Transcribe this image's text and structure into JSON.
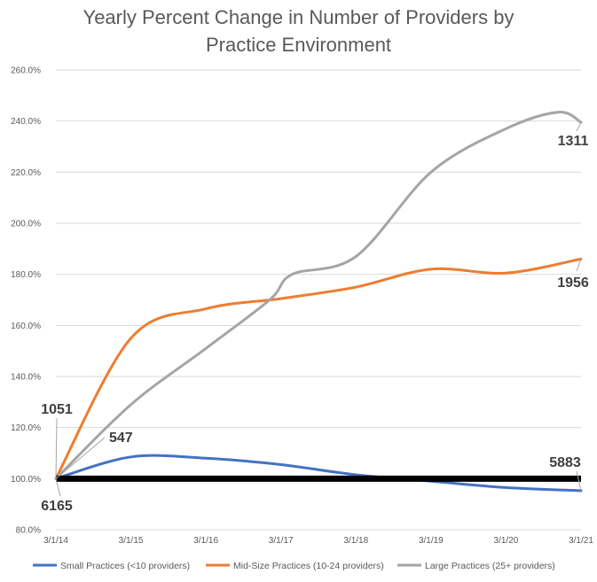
{
  "chart_data": {
    "type": "line",
    "title_line1": "Yearly Percent Change in Number of Providers by",
    "title_line2": "Practice Environment",
    "xlabel": "",
    "ylabel": "",
    "ylim": [
      80,
      260
    ],
    "grid": true,
    "legend_position": "bottom",
    "y_ticks": [
      80,
      100,
      120,
      140,
      160,
      180,
      200,
      220,
      240,
      260
    ],
    "y_tick_labels": [
      "80.0%",
      "100.0%",
      "120.0%",
      "140.0%",
      "160.0%",
      "180.0%",
      "200.0%",
      "220.0%",
      "240.0%",
      "260.0%"
    ],
    "x": [
      0,
      1,
      2,
      3,
      4,
      5,
      6,
      7
    ],
    "categories": [
      "3/1/14",
      "3/1/15",
      "3/1/16",
      "3/1/17",
      "3/1/18",
      "3/1/19",
      "3/1/20",
      "3/1/21"
    ],
    "baseline": 100,
    "baseline_color": "#000000",
    "series": [
      {
        "name": "Small Practices (<10 providers)",
        "color": "#4472C4",
        "points": [
          [
            0,
            100
          ],
          [
            1,
            108.5
          ],
          [
            2,
            108
          ],
          [
            3,
            105.5
          ],
          [
            4,
            101.5
          ],
          [
            5,
            99
          ],
          [
            6,
            96.5
          ],
          [
            7,
            95.3
          ]
        ],
        "start_label": "6165",
        "end_label": "5883"
      },
      {
        "name": "Mid-Size Practices (10-24 providers)",
        "color": "#ED7D31",
        "points": [
          [
            0,
            100
          ],
          [
            1,
            155
          ],
          [
            2,
            166.5
          ],
          [
            3,
            170.5
          ],
          [
            4,
            175
          ],
          [
            5,
            182
          ],
          [
            6,
            180.5
          ],
          [
            7,
            186
          ]
        ],
        "start_label": "1051",
        "end_label": "1956"
      },
      {
        "name": "Large Practices (25+ providers)",
        "color": "#A5A5A5",
        "points": [
          [
            0,
            100
          ],
          [
            1,
            129
          ],
          [
            2,
            151
          ],
          [
            2.85,
            170
          ],
          [
            3.15,
            180
          ],
          [
            4,
            187
          ],
          [
            5,
            220
          ],
          [
            6,
            237
          ],
          [
            6.7,
            243.5
          ],
          [
            7,
            239.5
          ]
        ],
        "start_label": "547",
        "end_label": "1311"
      }
    ]
  }
}
